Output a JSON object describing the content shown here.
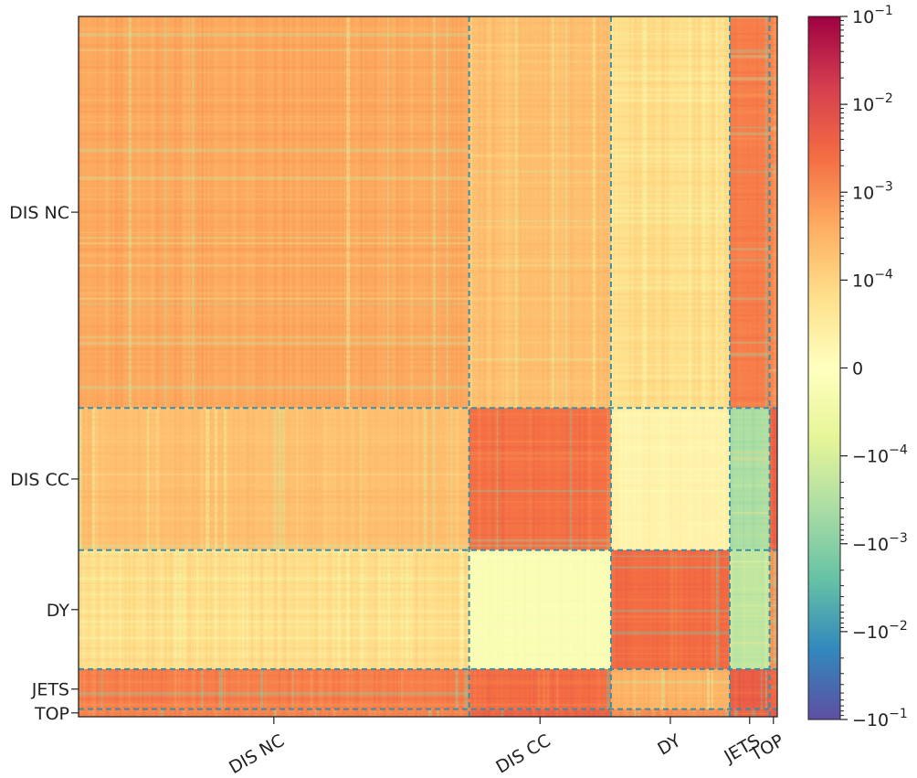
{
  "chart_data": {
    "type": "heatmap",
    "title": "",
    "xlabel": "",
    "ylabel": "",
    "description_scale": "symlog",
    "groups": [
      "DIS NC",
      "DIS CC",
      "DY",
      "JETS",
      "TOP"
    ],
    "group_fractions": [
      0.559,
      0.203,
      0.17,
      0.057,
      0.011
    ],
    "x_tick_labels": [
      "DIS NC",
      "DIS CC",
      "DY",
      "JETS",
      "TOP"
    ],
    "y_tick_labels": [
      "DIS NC",
      "DIS CC",
      "DY",
      "JETS",
      "TOP"
    ],
    "block_means": [
      [
        0.00045,
        0.0002,
        8e-05,
        0.0015,
        0.0012
      ],
      [
        0.0002,
        0.0022,
        3e-05,
        -0.00035,
        0.0035
      ],
      [
        8e-05,
        -2e-05,
        0.0025,
        -0.0002,
        0.0009
      ],
      [
        0.0015,
        0.0025,
        0.0003,
        0.004,
        0.003
      ],
      [
        0.0012,
        0.0035,
        0.0009,
        0.003,
        0.004
      ]
    ],
    "colorbar": {
      "ticks": [
        "10^{-1}",
        "10^{-2}",
        "10^{-3}",
        "10^{-4}",
        "0",
        "-10^{-4}",
        "-10^{-3}",
        "-10^{-2}",
        "-10^{-1}"
      ],
      "tick_values": [
        0.1,
        0.01,
        0.001,
        0.0001,
        0,
        -0.0001,
        -0.001,
        -0.01,
        -0.1
      ],
      "linthresh": 0.0001,
      "vmax": 0.1,
      "vmin": -0.1,
      "colormap": "Spectral_r",
      "stops": [
        "#9e0142",
        "#d53e4f",
        "#f46d43",
        "#fdae61",
        "#fee08b",
        "#ffffbf",
        "#e6f598",
        "#abdda4",
        "#66c2a5",
        "#3288bd",
        "#5e4fa2"
      ]
    }
  },
  "colors": {
    "boundary_line": "#3a8fa8",
    "frame": "#222222"
  }
}
